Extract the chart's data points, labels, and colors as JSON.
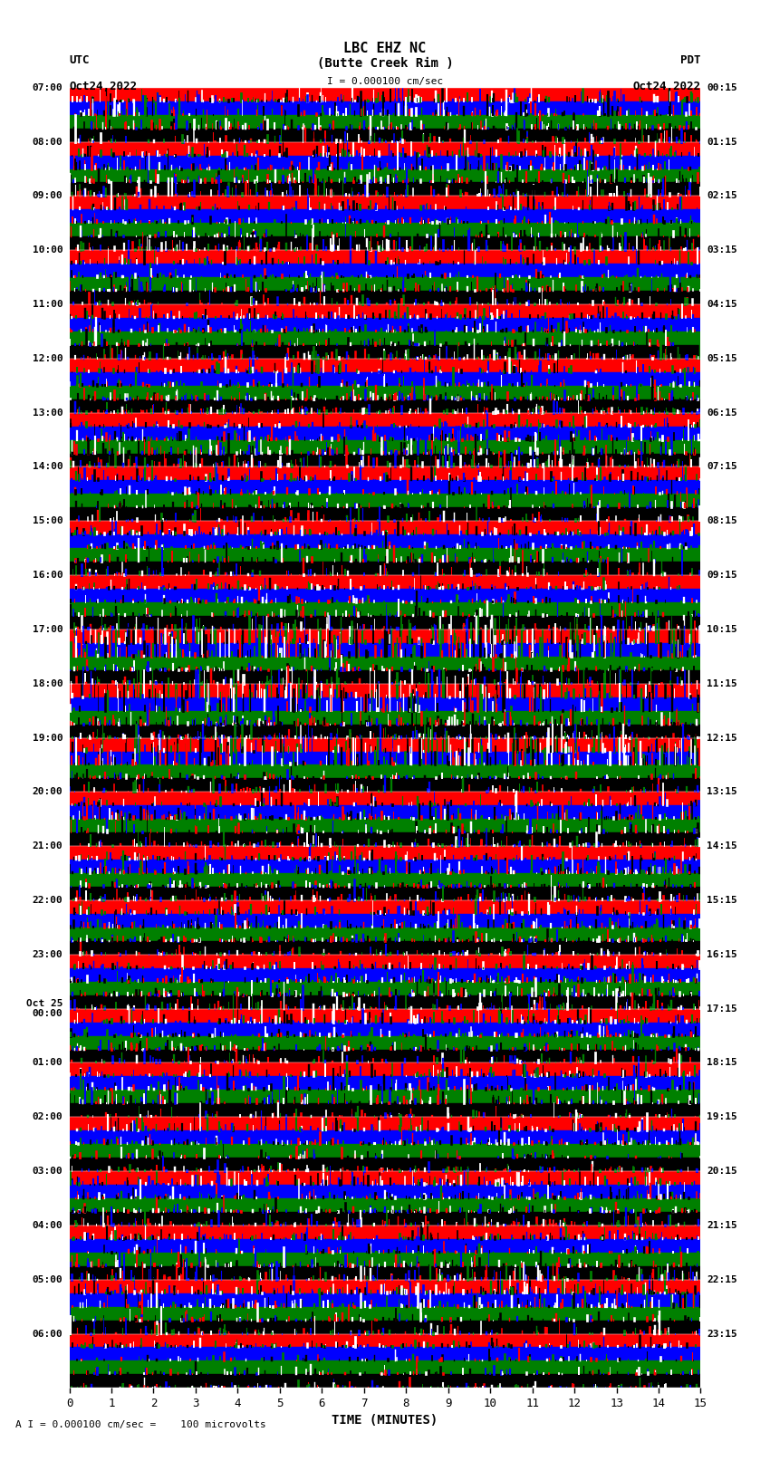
{
  "title_line1": "LBC EHZ NC",
  "title_line2": "(Butte Creek Rim )",
  "title_scale": "I = 0.000100 cm/sec",
  "label_utc": "UTC",
  "label_date_left": "Oct24,2022",
  "label_pdt": "PDT",
  "label_date_right": "Oct24,2022",
  "label_oct25": "Oct 25",
  "xlabel": "TIME (MINUTES)",
  "footer": "A I = 0.000100 cm/sec =    100 microvolts",
  "left_times": [
    "07:00",
    "08:00",
    "09:00",
    "10:00",
    "11:00",
    "12:00",
    "13:00",
    "14:00",
    "15:00",
    "16:00",
    "17:00",
    "18:00",
    "19:00",
    "20:00",
    "21:00",
    "22:00",
    "23:00",
    "Oct 25\n00:00",
    "01:00",
    "02:00",
    "03:00",
    "04:00",
    "05:00",
    "06:00"
  ],
  "right_times": [
    "00:15",
    "01:15",
    "02:15",
    "03:15",
    "04:15",
    "05:15",
    "06:15",
    "07:15",
    "08:15",
    "09:15",
    "10:15",
    "11:15",
    "12:15",
    "13:15",
    "14:15",
    "15:15",
    "16:15",
    "17:15",
    "18:15",
    "19:15",
    "20:15",
    "21:15",
    "22:15",
    "23:15"
  ],
  "n_rows": 24,
  "n_cols": 900,
  "bg_color": "white",
  "colors": [
    "red",
    "blue",
    "green",
    "black"
  ],
  "seed": 42,
  "fig_width": 8.5,
  "fig_height": 16.13,
  "dpi": 100
}
